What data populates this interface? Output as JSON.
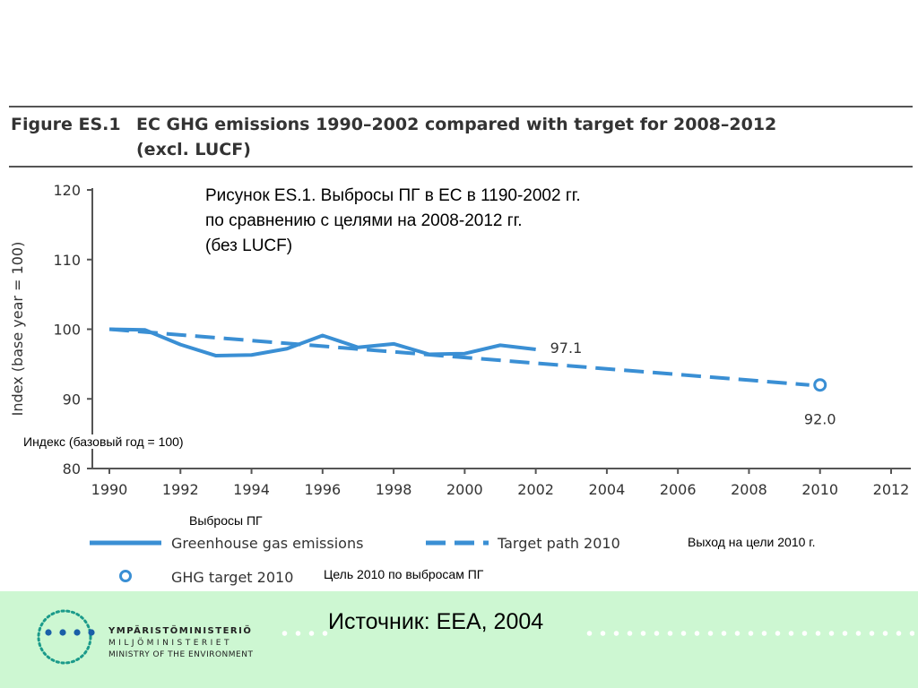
{
  "figure_title": {
    "label": "Figure ES.1",
    "line1": "EC GHG emissions 1990–2002 compared with target for 2008–2012",
    "line2": "(excl. LUCF)"
  },
  "ru_caption": {
    "line1": "Рисунок ES.1. Выбросы ПГ в ЕС в 1190-2002 гг.",
    "line2": "по сравнению с целями на 2008-2012 гг.",
    "line3": "(без LUCF)"
  },
  "ru_notes": {
    "ylabel": "Индекс (базовый год = 100)",
    "emissions": "Выбросы ПГ",
    "target_path": "Выход на цели  2010 г.",
    "target_2010": "Цель 2010 по выбросам ПГ"
  },
  "legend": {
    "emissions": "Greenhouse gas emissions",
    "target_path": "Target path 2010",
    "target_2010": "GHG target 2010"
  },
  "source": "Источник: ЕЕА, 2004",
  "ministry": {
    "line1": "YMPÄRISTÖMINISTERIÖ",
    "line2": "MILJÖMINISTERIET",
    "line3": "MINISTRY OF THE ENVIRONMENT"
  },
  "colors": {
    "series": "#3a8fd4",
    "footer": "#cdf7d2",
    "logo": "#1a9a8a",
    "logo_dots": "#1a5fa8"
  },
  "chart_data": {
    "type": "line",
    "ylabel": "Index (base year = 100)",
    "xlabel": "",
    "xlim": [
      1990,
      2012
    ],
    "ylim": [
      80,
      120
    ],
    "xticks": [
      1990,
      1992,
      1994,
      1996,
      1998,
      2000,
      2002,
      2004,
      2006,
      2008,
      2010,
      2012
    ],
    "yticks": [
      80,
      90,
      100,
      110,
      120
    ],
    "grid": false,
    "legend_position": "bottom",
    "series": [
      {
        "name": "Greenhouse gas emissions",
        "style": "solid",
        "x": [
          1990,
          1991,
          1992,
          1993,
          1994,
          1995,
          1996,
          1997,
          1998,
          1999,
          2000,
          2001,
          2002
        ],
        "y": [
          100.0,
          99.9,
          97.8,
          96.2,
          96.3,
          97.2,
          99.1,
          97.4,
          97.9,
          96.4,
          96.5,
          97.7,
          97.1
        ],
        "end_label": "97.1"
      },
      {
        "name": "Target path 2010",
        "style": "dashed",
        "x": [
          1990,
          2010
        ],
        "y": [
          100.0,
          92.0
        ]
      },
      {
        "name": "GHG target 2010",
        "style": "marker",
        "x": [
          2010
        ],
        "y": [
          92.0
        ],
        "label": "92.0"
      }
    ]
  }
}
